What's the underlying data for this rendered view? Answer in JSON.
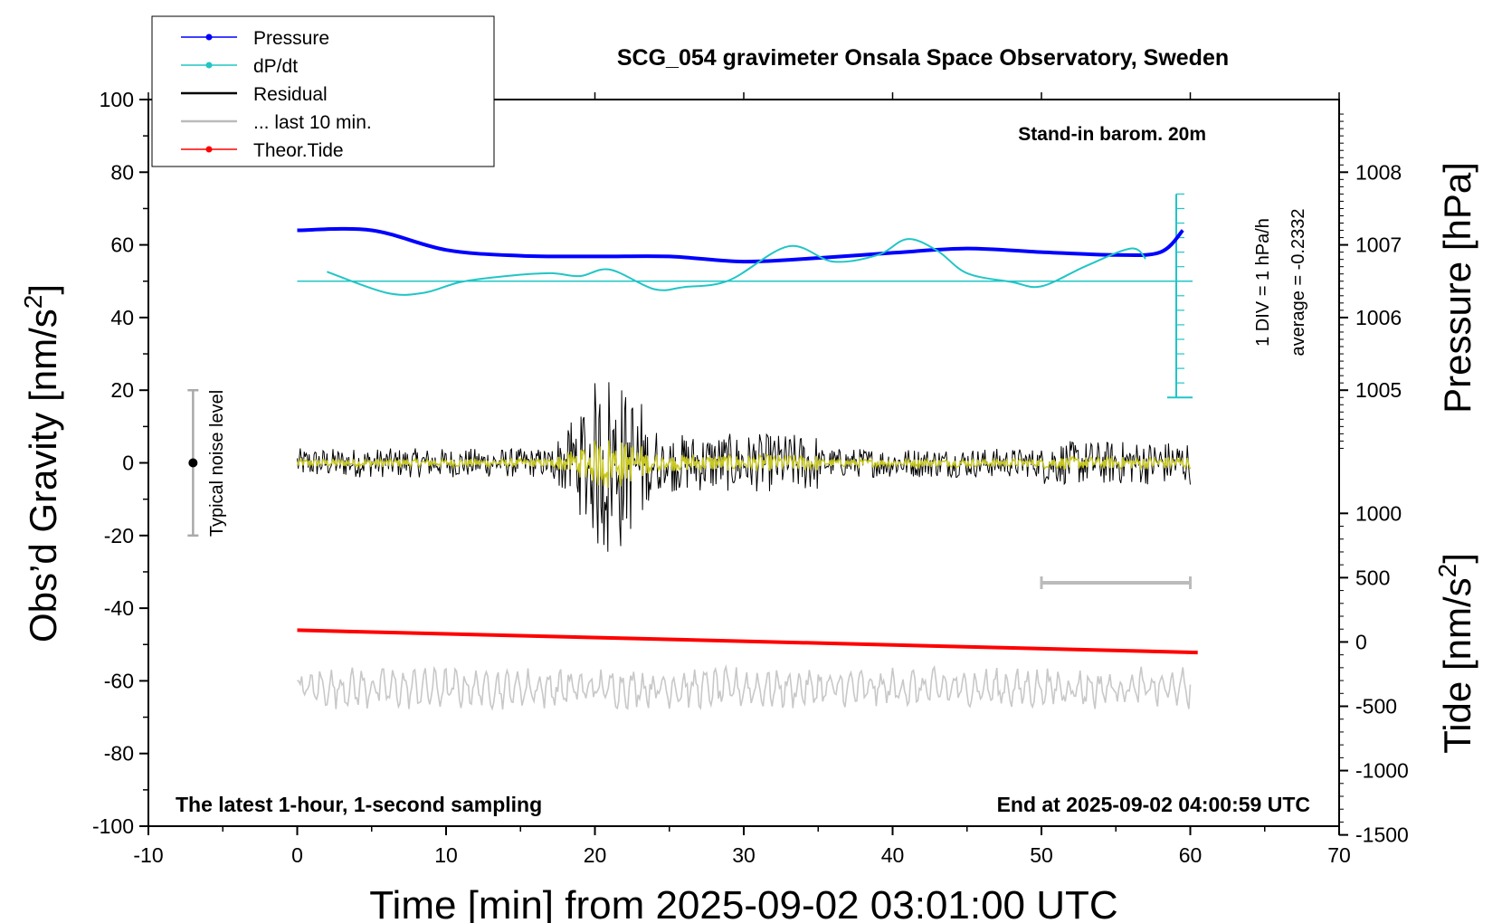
{
  "chart_data": {
    "type": "line",
    "title": "SCG_054 gravimeter Onsala Space Observatory, Sweden",
    "xlabel": "Time [min] from 2025-09-02 03:01:00 UTC",
    "ylabel_left_main": "Obs’d Gravity [nm/s",
    "ylabel_left_sup": "2",
    "ylabel_left_end": "]",
    "ylabel_right_top": "Pressure [hPa]",
    "ylabel_right_bottom_main": "Tide [nm/s",
    "ylabel_right_bottom_sup": "2",
    "ylabel_right_bottom_end": "]",
    "xlim": [
      -10,
      70
    ],
    "ylim": [
      -100,
      100
    ],
    "xticks": [
      "-10",
      "0",
      "10",
      "20",
      "30",
      "40",
      "50",
      "60",
      "70"
    ],
    "yticks": [
      "100",
      "80",
      "60",
      "40",
      "20",
      "0",
      "-20",
      "-40",
      "-60",
      "-80",
      "-100"
    ],
    "pressure_axis": {
      "ticks": [
        "1008",
        "1007",
        "1006",
        "1005"
      ],
      "values": [
        1008,
        1007,
        1006,
        1005
      ]
    },
    "tide_axis": {
      "ticks": [
        "1000",
        "500",
        "0",
        "-500",
        "-1000",
        "-1500"
      ],
      "values": [
        1000,
        500,
        0,
        -500,
        -1000,
        -1500
      ]
    },
    "annotations": {
      "barometer": "Stand-in barom. 20m",
      "div_note": "1 DIV = 1 hPa/h",
      "average_note": "average = -0.2332",
      "noise_label": "Typical noise level",
      "latest_note": "The latest 1-hour, 1-second sampling",
      "end_note": "End at 2025-09-02 04:00:59 UTC"
    },
    "legend_position": "top-left",
    "legend": [
      {
        "label": "Pressure",
        "color": "#0000ff",
        "marker": true
      },
      {
        "label": "dP/dt",
        "color": "#22c5c5",
        "marker": true
      },
      {
        "label": "Residual",
        "color": "#000000",
        "marker": false
      },
      {
        "label": "... last 10 min.",
        "color": "#bbbbbb",
        "marker": false
      },
      {
        "label": "Theor.Tide",
        "color": "#ff0000",
        "marker": true
      }
    ],
    "series": [
      {
        "name": "Pressure",
        "color": "#0000ff",
        "unit": "hPa",
        "x": [
          0,
          5,
          10,
          15,
          20,
          25,
          30,
          35,
          40,
          45,
          50,
          55,
          58,
          59.5
        ],
        "values": [
          1007.2,
          1007.2,
          1006.93,
          1006.85,
          1006.84,
          1006.84,
          1006.77,
          1006.82,
          1006.89,
          1006.95,
          1006.9,
          1006.86,
          1006.9,
          1007.2
        ]
      },
      {
        "name": "dP/dt",
        "color": "#22c5c5",
        "unit": "hPa/h",
        "x": [
          2,
          6,
          8.5,
          11,
          14,
          17,
          19,
          21,
          24,
          26,
          29,
          33,
          36,
          39,
          41,
          43,
          45,
          48,
          50,
          53,
          56,
          57
        ],
        "values": [
          0.65,
          -0.8,
          -0.8,
          -0.05,
          0.35,
          0.55,
          0.35,
          0.8,
          -0.55,
          -0.4,
          0.05,
          2.4,
          1.35,
          1.8,
          2.9,
          2.1,
          0.55,
          -0.05,
          -0.35,
          1.05,
          2.25,
          1.55
        ]
      },
      {
        "name": "Theor.Tide",
        "color": "#ff0000",
        "unit": "nm/s2",
        "x": [
          0,
          60.5
        ],
        "values": [
          92,
          -82
        ]
      }
    ],
    "dpdt_reference": {
      "average_line_value": 0,
      "div_size": 1,
      "ticks": [
        6,
        5,
        4,
        3,
        2,
        1,
        0,
        -1,
        -2,
        -3,
        -4,
        -5,
        -6,
        -7,
        -8
      ]
    },
    "residual": {
      "x_range": [
        0,
        60
      ],
      "noise_amplitude": 4,
      "burst_x_range": [
        17,
        25
      ],
      "burst_peak": 30
    },
    "last_10_min_scale_bar": {
      "x_range": [
        50,
        60
      ]
    },
    "noise_level_bar": {
      "x": -7,
      "range": [
        -20,
        20
      ],
      "center": 0
    }
  }
}
